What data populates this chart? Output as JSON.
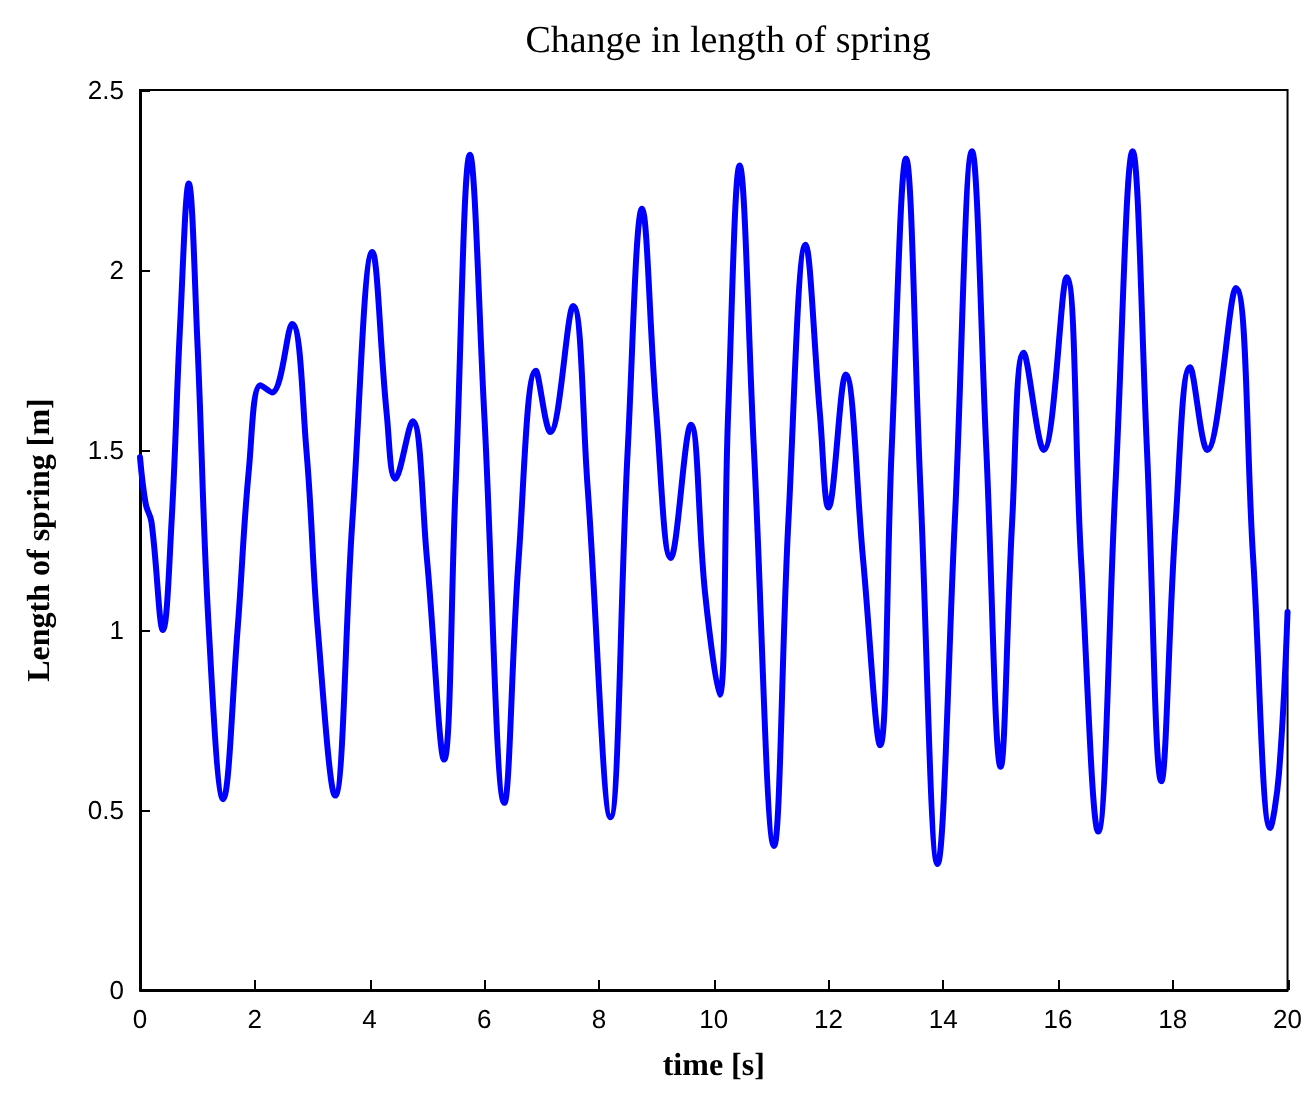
{
  "chart_data": {
    "type": "line",
    "title": "Change in length of spring",
    "xlabel": "time [s]",
    "ylabel": "Length of spring [m]",
    "xlim": [
      0,
      20
    ],
    "xticks": [
      0,
      2,
      4,
      6,
      8,
      10,
      12,
      14,
      16,
      18,
      20
    ],
    "ylim": [
      0,
      2.5
    ],
    "yticks": [
      0,
      0.5,
      1,
      1.5,
      2,
      2.5
    ],
    "grid": false,
    "marker": "none",
    "line_style": "solid",
    "series": [
      {
        "color": "#0000ff",
        "x": [
          0,
          0.1,
          0.2,
          0.4,
          0.55,
          0.7,
          0.85,
          1.0,
          1.2,
          1.45,
          1.7,
          1.9,
          2.1,
          2.3,
          2.65,
          2.9,
          3.1,
          3.4,
          3.7,
          4.05,
          4.3,
          4.45,
          4.75,
          5.0,
          5.3,
          5.5,
          5.75,
          6.0,
          6.35,
          6.6,
          6.9,
          7.15,
          7.55,
          7.8,
          8.2,
          8.5,
          8.75,
          9.0,
          9.25,
          9.6,
          9.85,
          10.1,
          10.25,
          10.45,
          10.7,
          11.05,
          11.3,
          11.6,
          11.85,
          12.0,
          12.3,
          12.6,
          12.9,
          13.1,
          13.35,
          13.6,
          13.9,
          14.2,
          14.5,
          14.75,
          15.0,
          15.2,
          15.4,
          15.75,
          16.15,
          16.4,
          16.7,
          17.0,
          17.3,
          17.55,
          17.8,
          18.05,
          18.3,
          18.6,
          19.1,
          19.4,
          19.7,
          19.85,
          20
        ],
        "values": [
          1.48,
          1.35,
          1.3,
          1.0,
          1.3,
          1.85,
          2.24,
          1.8,
          1.0,
          0.53,
          1.0,
          1.45,
          1.68,
          1.66,
          1.85,
          1.5,
          1.0,
          0.54,
          1.3,
          2.05,
          1.6,
          1.42,
          1.58,
          1.2,
          0.64,
          1.4,
          2.32,
          1.6,
          0.52,
          1.2,
          1.72,
          1.55,
          1.9,
          1.4,
          0.48,
          1.5,
          2.17,
          1.6,
          1.2,
          1.57,
          1.1,
          0.82,
          1.6,
          2.29,
          1.5,
          0.4,
          1.3,
          2.07,
          1.6,
          1.34,
          1.71,
          1.2,
          0.68,
          1.5,
          2.31,
          1.4,
          0.35,
          1.3,
          2.33,
          1.5,
          0.62,
          1.3,
          1.77,
          1.5,
          1.98,
          1.2,
          0.44,
          1.4,
          2.33,
          1.5,
          0.58,
          1.3,
          1.73,
          1.5,
          1.95,
          1.2,
          0.45,
          0.6,
          1.05
        ]
      }
    ]
  }
}
